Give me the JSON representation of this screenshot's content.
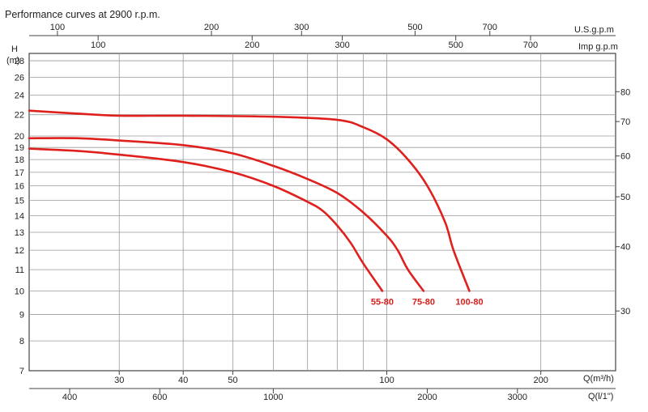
{
  "chart_data": {
    "type": "line",
    "title": "Performance curves at 2900 r.p.m.",
    "y_left": {
      "label_top": "H",
      "label_unit": "(m)",
      "scale": "log",
      "range": [
        7,
        30
      ],
      "ticks": [
        7,
        8,
        9,
        10,
        11,
        12,
        13,
        14,
        15,
        16,
        17,
        18,
        19,
        20,
        22,
        24,
        26,
        28
      ]
    },
    "y_right": {
      "label": "",
      "ticks": [
        30,
        40,
        50,
        60,
        70,
        80
      ]
    },
    "x_bottom": {
      "label": "Q(m³/h)",
      "scale": "log",
      "range": [
        20,
        280
      ],
      "ticks": [
        30,
        40,
        50,
        100,
        200
      ]
    },
    "x_bottom2": {
      "label": "Q(l/1\")",
      "ticks": [
        400,
        600,
        1000,
        2000,
        3000
      ]
    },
    "x_top": {
      "label": "U.S.g.p.m",
      "ticks": [
        100,
        200,
        300,
        500,
        700
      ]
    },
    "x_top2": {
      "label": "Imp g.p.m",
      "ticks": [
        100,
        200,
        300,
        500,
        700
      ]
    },
    "grid": true,
    "series": [
      {
        "name": "100-80",
        "points": [
          [
            20,
            22.4
          ],
          [
            25,
            22.1
          ],
          [
            30,
            21.9
          ],
          [
            40,
            21.9
          ],
          [
            60,
            21.8
          ],
          [
            80,
            21.5
          ],
          [
            90,
            20.8
          ],
          [
            100,
            19.7
          ],
          [
            110,
            18.0
          ],
          [
            120,
            16.0
          ],
          [
            130,
            13.6
          ],
          [
            135,
            12.0
          ],
          [
            145,
            10.0
          ]
        ]
      },
      {
        "name": "75-80",
        "points": [
          [
            20,
            19.8
          ],
          [
            25,
            19.8
          ],
          [
            30,
            19.6
          ],
          [
            40,
            19.2
          ],
          [
            50,
            18.5
          ],
          [
            60,
            17.5
          ],
          [
            70,
            16.5
          ],
          [
            80,
            15.5
          ],
          [
            90,
            14.2
          ],
          [
            100,
            12.8
          ],
          [
            105,
            12.0
          ],
          [
            110,
            11.0
          ],
          [
            118,
            10.0
          ]
        ]
      },
      {
        "name": "55-80",
        "points": [
          [
            20,
            18.9
          ],
          [
            25,
            18.7
          ],
          [
            30,
            18.4
          ],
          [
            40,
            17.8
          ],
          [
            50,
            17.0
          ],
          [
            60,
            16.0
          ],
          [
            70,
            14.9
          ],
          [
            75,
            14.3
          ],
          [
            80,
            13.4
          ],
          [
            85,
            12.4
          ],
          [
            90,
            11.3
          ],
          [
            98,
            10.0
          ]
        ]
      }
    ]
  }
}
